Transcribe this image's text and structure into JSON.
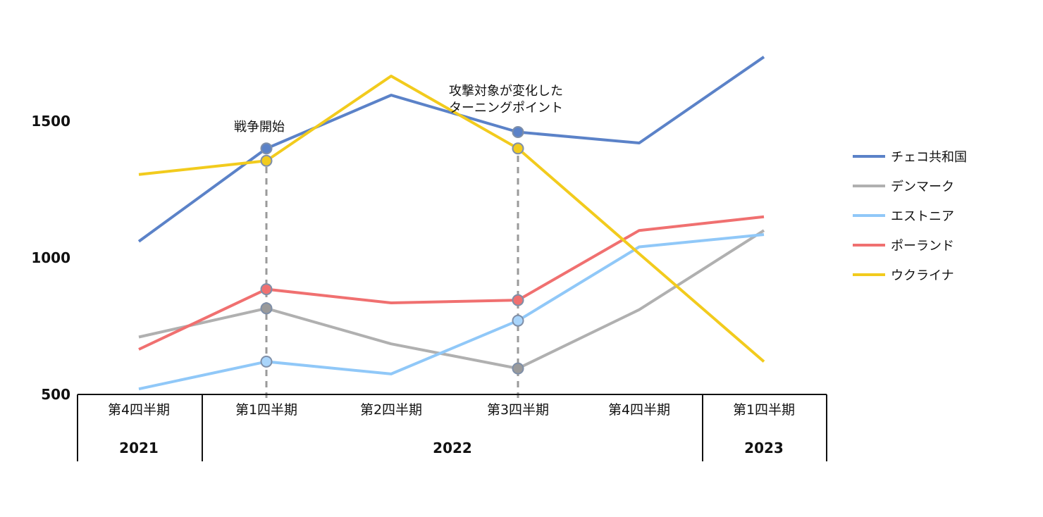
{
  "chart_data": {
    "type": "line",
    "title": "",
    "xlabel": "",
    "ylabel": "",
    "ylim": [
      500,
      1800
    ],
    "yticks": [
      500,
      1000,
      1500
    ],
    "categories": [
      "第4四半期",
      "第1四半期",
      "第2四半期",
      "第3四半期",
      "第4四半期",
      "第1四半期"
    ],
    "years": [
      {
        "label": "2021",
        "from": 0,
        "to": 0
      },
      {
        "label": "2022",
        "from": 1,
        "to": 4
      },
      {
        "label": "2023",
        "from": 5,
        "to": 5
      }
    ],
    "series": [
      {
        "name": "チェコ共和国",
        "color": "#5b82c8",
        "values": [
          1060,
          1400,
          1595,
          1460,
          1420,
          1735
        ]
      },
      {
        "name": "デンマーク",
        "color": "#b0b0b0",
        "values": [
          710,
          815,
          685,
          595,
          810,
          1100
        ]
      },
      {
        "name": "エストニア",
        "color": "#90c8f8",
        "values": [
          520,
          620,
          575,
          770,
          1040,
          1085
        ]
      },
      {
        "name": "ポーランド",
        "color": "#f07070",
        "values": [
          665,
          885,
          835,
          845,
          1100,
          1150
        ]
      },
      {
        "name": "ウクライナ",
        "color": "#f2cb1d",
        "values": [
          1305,
          1355,
          1665,
          1400,
          1015,
          620
        ]
      }
    ],
    "annotations": [
      {
        "index": 1,
        "lines": [
          "戦争開始"
        ]
      },
      {
        "index": 3,
        "lines": [
          "攻撃対象が変化した",
          "ターニングポイント"
        ]
      }
    ],
    "legend_position": "right"
  }
}
